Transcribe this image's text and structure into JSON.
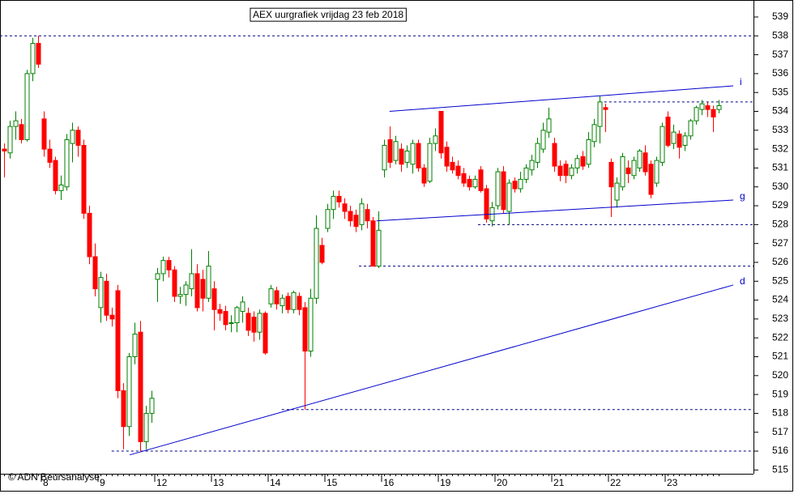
{
  "chart_data": {
    "type": "candlestick",
    "title": "AEX uurgrafiek vrijdag 23 feb 2018",
    "source": "© ADN Beursanalyse",
    "categories": [
      null,
      null,
      null,
      null,
      null,
      null,
      null,
      "8",
      null,
      null,
      null,
      null,
      null,
      null,
      null,
      null,
      null,
      "9",
      null,
      null,
      null,
      null,
      null,
      null,
      null,
      null,
      null,
      "12",
      null,
      null,
      null,
      null,
      null,
      null,
      null,
      null,
      null,
      "13",
      null,
      null,
      null,
      null,
      null,
      null,
      null,
      null,
      null,
      "14",
      null,
      null,
      null,
      null,
      null,
      null,
      null,
      null,
      null,
      "15",
      null,
      null,
      null,
      null,
      null,
      null,
      null,
      null,
      null,
      "16",
      null,
      null,
      null,
      null,
      null,
      null,
      null,
      null,
      null,
      "19",
      null,
      null,
      null,
      null,
      null,
      null,
      null,
      null,
      null,
      "20",
      null,
      null,
      null,
      null,
      null,
      null,
      null,
      null,
      null,
      "21",
      null,
      null,
      null,
      null,
      null,
      null,
      null,
      null,
      null,
      "22",
      null,
      null,
      null,
      null,
      null,
      null,
      null,
      null,
      null,
      "23",
      null,
      null,
      null,
      null,
      null,
      null,
      null,
      null,
      null
    ],
    "open": [
      532,
      531.8,
      533.2,
      533.3,
      532.5,
      536,
      537.6,
      533.6,
      532,
      531.4,
      529.8,
      530,
      532.3,
      533,
      532.2,
      528.6,
      526.3,
      523.6,
      525,
      523.2,
      524.5,
      519.2,
      517.3,
      521,
      522.3,
      516.5,
      518,
      525.1,
      525.4,
      526.1,
      525.6,
      524.2,
      524.3,
      524.6,
      525.4,
      525.1,
      524.1,
      524.6,
      523.5,
      523.4,
      522.8,
      522.8,
      523.4,
      523.3,
      523.1,
      522.3,
      523.3,
      523.8,
      524.5,
      523.7,
      524.2,
      523.5,
      524.2,
      523.6,
      521.3,
      524.1,
      526.9,
      527.8,
      528.8,
      529.5,
      529.1,
      528.7,
      528.5,
      528,
      528.8,
      528.2,
      525.8,
      530.9,
      532.5,
      531.4,
      532,
      531.3,
      531.2,
      532.3,
      531,
      530.3,
      532.3,
      534,
      532.1,
      531.3,
      531.1,
      530.7,
      530.4,
      530,
      530.9,
      529.9,
      528.2,
      529,
      530.8,
      528.7,
      530.3,
      529.9,
      530.4,
      530.9,
      531.3,
      532,
      532.9,
      532.3,
      531.1,
      531.2,
      530.6,
      531,
      531.6,
      531.2,
      532.4,
      533.2,
      534.2,
      531.3,
      529.3,
      530,
      531,
      530.6,
      531,
      531.8,
      531.2,
      530.2,
      531.3,
      533.7,
      532.3,
      532.8,
      532.2,
      532.7,
      533.5,
      534.1,
      534.3,
      534.1,
      534.1
    ],
    "high": [
      532.3,
      533.5,
      534,
      533.6,
      536.2,
      537.9,
      538,
      534,
      532.5,
      531.6,
      530.6,
      532.8,
      533.4,
      533.2,
      532.5,
      529,
      527,
      525.5,
      525.4,
      523.6,
      524.8,
      519.6,
      521.2,
      522.8,
      522.9,
      518.4,
      519.2,
      525.7,
      526.3,
      526.3,
      525.8,
      524.7,
      525,
      526.7,
      525.9,
      525.6,
      526.6,
      525,
      523.8,
      523.7,
      523.2,
      523.7,
      524.2,
      523.6,
      523.4,
      523.5,
      523.4,
      524.8,
      524.7,
      524.3,
      524.4,
      524.5,
      524.4,
      523.9,
      524.6,
      528.5,
      527.3,
      529.1,
      529.8,
      529.8,
      529.4,
      529,
      528.8,
      529.4,
      529.1,
      528.4,
      528.7,
      532.5,
      533.2,
      532.7,
      532.3,
      532.2,
      532.5,
      532.5,
      531.2,
      532.6,
      533.1,
      534,
      532.4,
      531.6,
      531.4,
      531,
      530.6,
      530.6,
      531.1,
      530.1,
      529.2,
      531,
      531.1,
      530.4,
      530.5,
      530.8,
      531.2,
      531.7,
      532.6,
      533.4,
      534.2,
      532.6,
      531.4,
      531.4,
      531.2,
      531.7,
      531.9,
      532.9,
      533.6,
      534.8,
      534.4,
      531.5,
      530.5,
      531.8,
      531.4,
      531.6,
      532,
      532.2,
      531.4,
      531.6,
      533.4,
      534,
      533.3,
      533,
      532.9,
      533.6,
      534.3,
      534.6,
      534.5,
      534.3,
      534.6
    ],
    "low": [
      530.5,
      531.5,
      532.5,
      532.3,
      532.4,
      535.6,
      536.3,
      531.6,
      531,
      529.6,
      529.3,
      529.8,
      531.3,
      531.6,
      528.3,
      525.9,
      524.2,
      522.8,
      522.9,
      522.6,
      518.8,
      516.1,
      516.8,
      520.6,
      516,
      516.1,
      517.5,
      523.9,
      525,
      525.2,
      523.9,
      523.8,
      523.7,
      524.2,
      523.4,
      523.4,
      523.9,
      522.4,
      522.9,
      522.4,
      522.3,
      522.3,
      522.8,
      522.1,
      521.8,
      521.9,
      521.1,
      523.6,
      523.5,
      523.3,
      523.3,
      523.3,
      523.2,
      518.2,
      521,
      523.8,
      525.9,
      527.6,
      528.3,
      528.9,
      528.3,
      527.9,
      527.6,
      527.7,
      527.8,
      525.8,
      525.7,
      530.5,
      531,
      531.2,
      530.8,
      531,
      530.7,
      530.8,
      530,
      530.2,
      531.9,
      531.5,
      530.8,
      530.7,
      530.4,
      530,
      529.8,
      529.9,
      529.7,
      528.1,
      527.9,
      528.8,
      528.6,
      528,
      529.7,
      529.7,
      530.2,
      530.6,
      531,
      531.8,
      532.6,
      530.8,
      530.3,
      530.2,
      530.4,
      530.7,
      530.9,
      531,
      532.1,
      532.3,
      532.9,
      528.4,
      528.9,
      529.8,
      530.2,
      530.4,
      530.8,
      530.6,
      529.4,
      530,
      531.1,
      532.1,
      532,
      531.5,
      531.9,
      532.5,
      533.3,
      533.8,
      533.7,
      532.9,
      533.9
    ],
    "close": [
      531.9,
      533.2,
      533.5,
      532.5,
      536,
      537.6,
      536.5,
      532,
      531.3,
      529.8,
      530.1,
      532.5,
      533,
      532.2,
      528.6,
      526.3,
      524.6,
      525.2,
      523.2,
      523,
      519.2,
      517.3,
      521,
      522.2,
      516.5,
      518,
      518.8,
      525.4,
      526.1,
      525.6,
      524.2,
      524.3,
      524.8,
      525.4,
      523.6,
      524.1,
      525.8,
      523.5,
      523.3,
      522.7,
      522.8,
      523.6,
      523.9,
      522.4,
      522.3,
      523.3,
      521.2,
      524.6,
      523.8,
      524.1,
      523.5,
      524.4,
      523.5,
      521.3,
      524.1,
      527.8,
      526,
      528.8,
      529.5,
      529.2,
      528.7,
      528.2,
      527.9,
      529.1,
      528.2,
      525.8,
      527.7,
      532.2,
      531.3,
      532.4,
      531.2,
      531.9,
      532.3,
      531,
      530.2,
      532.3,
      532.7,
      531.8,
      531.1,
      530.9,
      530.6,
      530.2,
      530,
      530.4,
      529.8,
      528.3,
      528.9,
      530.8,
      528.8,
      530.2,
      529.9,
      530.4,
      531,
      531.4,
      532.3,
      533,
      533.6,
      531.1,
      530.6,
      530.6,
      531,
      531.5,
      531.1,
      532.5,
      533.3,
      534.5,
      534.1,
      530,
      530.2,
      531.6,
      530.7,
      531.4,
      531.9,
      530.8,
      529.6,
      531.4,
      533.2,
      532.2,
      532.9,
      532.1,
      532.7,
      533.5,
      534.2,
      534.4,
      534.1,
      533.7,
      534.3
    ],
    "up_color": "#008000",
    "down_color": "#ff0000",
    "levels": [
      {
        "value": 538,
        "from": -1
      },
      {
        "value": 534.5,
        "from": 104.9
      },
      {
        "value": 528,
        "from": 83.5
      },
      {
        "value": 525.8,
        "from": 62.5
      },
      {
        "value": 518.2,
        "from": 48.9
      },
      {
        "value": 516,
        "from": 18.9
      }
    ],
    "level_color": "#000080",
    "trendlines": [
      {
        "label": "i",
        "x": [
          67.9,
          128.5
        ],
        "y": [
          534,
          535.35
        ]
      },
      {
        "label": "g",
        "x": [
          65.6,
          128.5
        ],
        "y": [
          528.2,
          529.3
        ]
      },
      {
        "label": "d",
        "x": [
          22.1,
          128.5
        ],
        "y": [
          515.8,
          524.8
        ]
      }
    ],
    "trend_color": "#0000cc",
    "ylim": [
      514.8,
      539.9
    ],
    "yticks": [
      515,
      516,
      517,
      518,
      519,
      520,
      521,
      522,
      523,
      524,
      525,
      526,
      527,
      528,
      529,
      530,
      531,
      532,
      533,
      534,
      535,
      536,
      537,
      538,
      539
    ]
  }
}
